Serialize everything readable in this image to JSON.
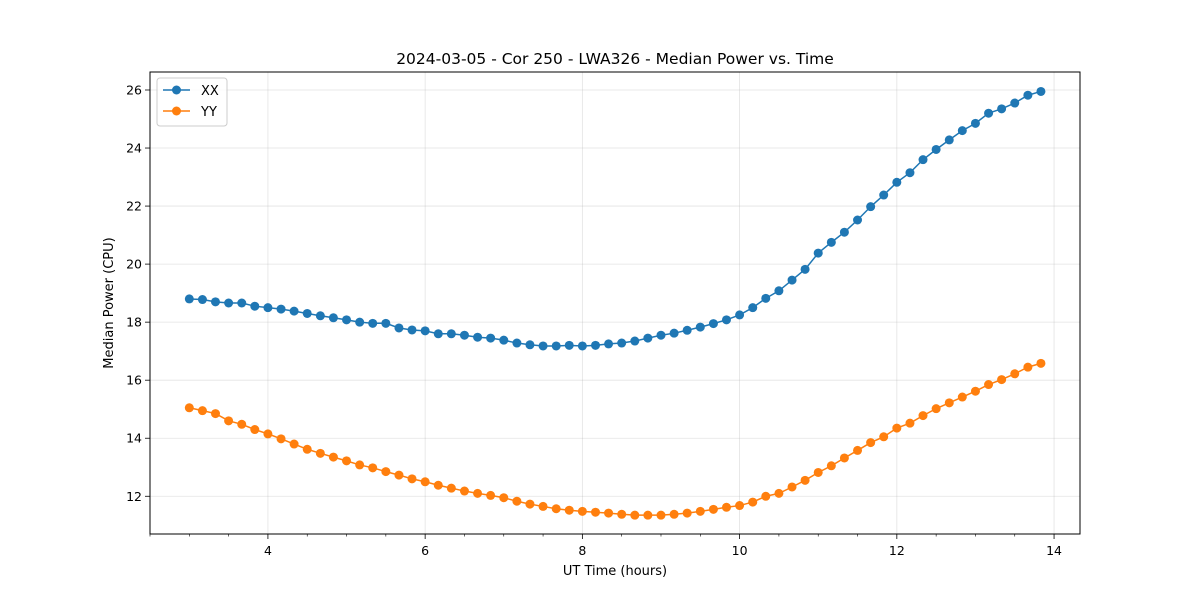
{
  "chart_data": {
    "type": "line",
    "title": "2024-03-05 - Cor 250 - LWA326 - Median Power vs. Time",
    "xlabel": "UT Time (hours)",
    "ylabel": "Median Power (CPU)",
    "xlim": [
      2.5,
      14.33
    ],
    "ylim": [
      10.7,
      26.62
    ],
    "xticks": [
      4,
      6,
      8,
      10,
      12,
      14
    ],
    "xtick_labels": [
      "4",
      "6",
      "8",
      "10",
      "12",
      "14"
    ],
    "yticks": [
      12,
      14,
      16,
      18,
      20,
      22,
      24,
      26
    ],
    "ytick_labels": [
      "12",
      "14",
      "16",
      "18",
      "20",
      "22",
      "24",
      "26"
    ],
    "grid": true,
    "legend": "top-left",
    "x": [
      3.0,
      3.167,
      3.333,
      3.5,
      3.667,
      3.833,
      4.0,
      4.167,
      4.333,
      4.5,
      4.667,
      4.833,
      5.0,
      5.167,
      5.333,
      5.5,
      5.667,
      5.833,
      6.0,
      6.167,
      6.333,
      6.5,
      6.667,
      6.833,
      7.0,
      7.167,
      7.333,
      7.5,
      7.667,
      7.833,
      8.0,
      8.167,
      8.333,
      8.5,
      8.667,
      8.833,
      9.0,
      9.167,
      9.333,
      9.5,
      9.667,
      9.833,
      10.0,
      10.167,
      10.333,
      10.5,
      10.667,
      10.833,
      11.0,
      11.167,
      11.333,
      11.5,
      11.667,
      11.833,
      12.0,
      12.167,
      12.333,
      12.5,
      12.667,
      12.833,
      13.0,
      13.167,
      13.333,
      13.5,
      13.667,
      13.833
    ],
    "series": [
      {
        "name": "XX",
        "color": "#1f77b4",
        "values": [
          18.8,
          18.78,
          18.7,
          18.66,
          18.66,
          18.55,
          18.5,
          18.45,
          18.38,
          18.3,
          18.22,
          18.15,
          18.08,
          18.0,
          17.96,
          17.96,
          17.8,
          17.73,
          17.7,
          17.6,
          17.6,
          17.55,
          17.48,
          17.45,
          17.38,
          17.28,
          17.22,
          17.18,
          17.18,
          17.2,
          17.18,
          17.2,
          17.25,
          17.28,
          17.35,
          17.45,
          17.55,
          17.62,
          17.72,
          17.83,
          17.95,
          18.08,
          18.25,
          18.5,
          18.82,
          19.08,
          19.45,
          19.82,
          20.38,
          20.75,
          21.1,
          21.52,
          21.98,
          22.38,
          22.82,
          23.15,
          23.6,
          23.95,
          24.28,
          24.6,
          24.85,
          25.2,
          25.35,
          25.55,
          25.82,
          25.95
        ]
      },
      {
        "name": "YY",
        "color": "#ff7f0e",
        "values": [
          15.05,
          14.95,
          14.85,
          14.6,
          14.48,
          14.3,
          14.15,
          13.98,
          13.8,
          13.62,
          13.48,
          13.35,
          13.22,
          13.08,
          12.98,
          12.85,
          12.73,
          12.6,
          12.5,
          12.38,
          12.28,
          12.18,
          12.1,
          12.03,
          11.95,
          11.83,
          11.73,
          11.65,
          11.57,
          11.52,
          11.48,
          11.45,
          11.42,
          11.38,
          11.35,
          11.35,
          11.35,
          11.38,
          11.42,
          11.48,
          11.55,
          11.62,
          11.68,
          11.8,
          12.0,
          12.1,
          12.32,
          12.55,
          12.82,
          13.05,
          13.32,
          13.58,
          13.85,
          14.05,
          14.35,
          14.52,
          14.78,
          15.02,
          15.22,
          15.42,
          15.62,
          15.85,
          16.02,
          16.22,
          16.45,
          16.58
        ]
      }
    ]
  }
}
